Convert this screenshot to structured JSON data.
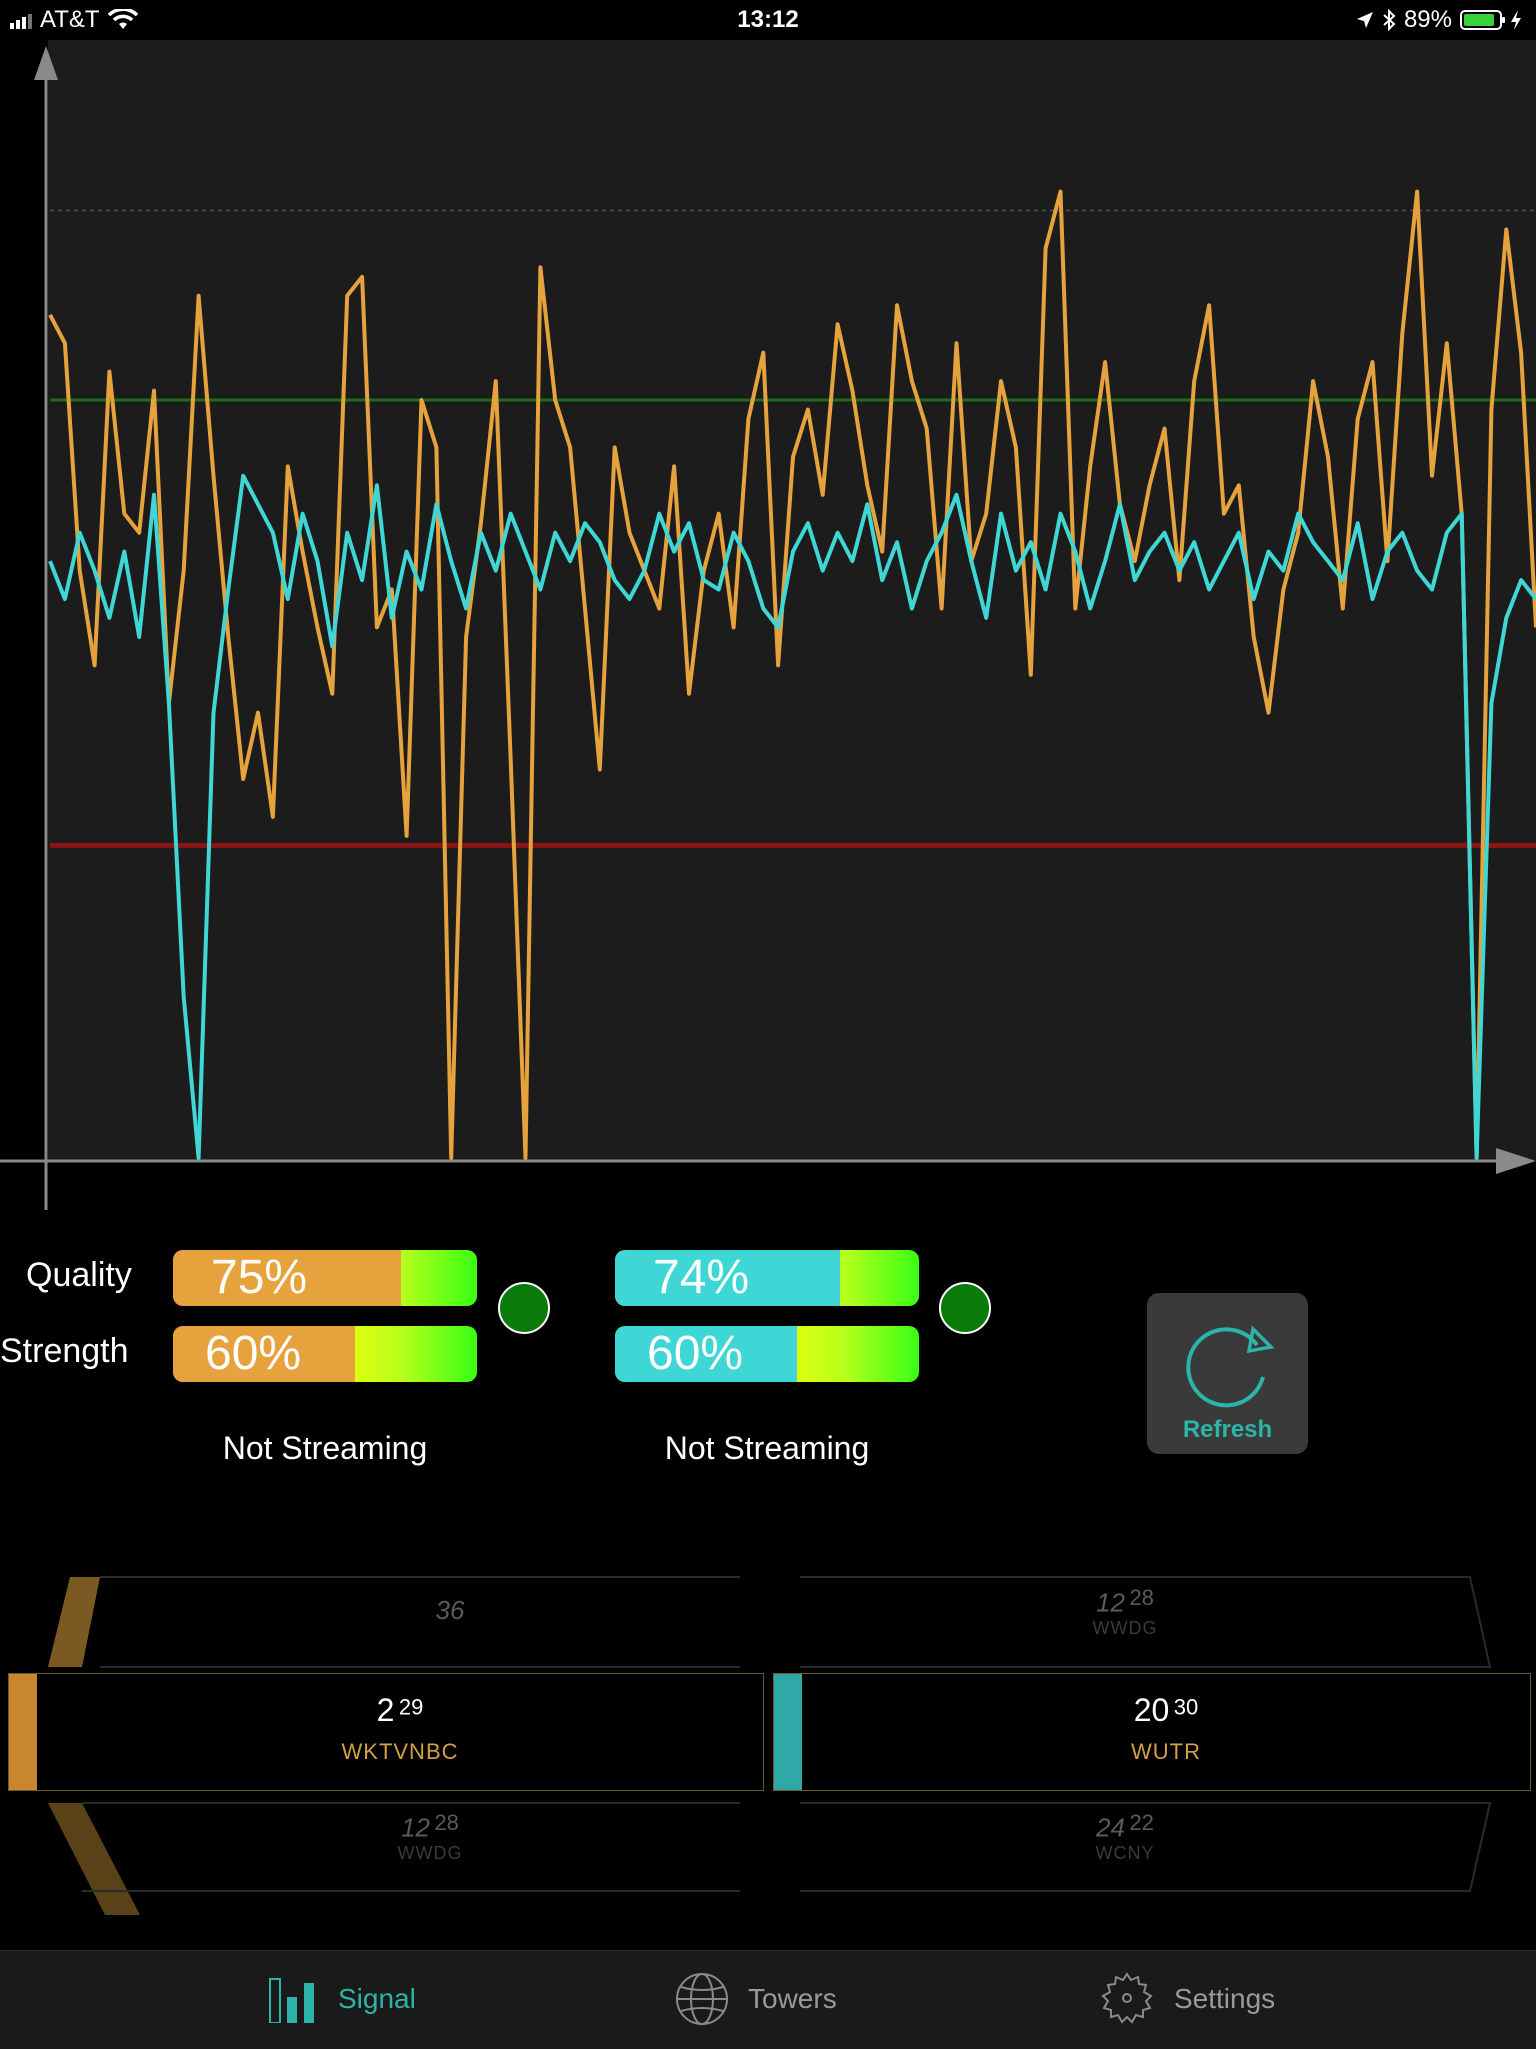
{
  "status_bar": {
    "carrier": "AT&T",
    "time": "13:12",
    "battery_percent": "89%",
    "battery_level": 0.89
  },
  "chart": {
    "orange_color": "#e6a23c",
    "cyan_color": "#3fd6d6",
    "top_reference": 100,
    "green_reference": 80,
    "red_reference": 33
  },
  "chart_data": {
    "type": "line",
    "title": "",
    "xlabel": "",
    "ylabel": "",
    "ylim": [
      0,
      118
    ],
    "grid": false,
    "x": [
      0,
      4,
      8,
      12,
      16,
      20,
      24,
      28,
      32,
      36,
      40,
      44,
      48,
      52,
      56,
      60,
      64,
      68,
      72,
      76,
      80,
      84,
      88,
      92,
      96,
      100,
      104,
      108,
      112,
      116,
      120,
      124,
      128,
      132,
      136,
      140,
      144,
      148,
      152,
      156,
      160,
      164,
      168,
      172,
      176,
      180,
      184,
      188,
      192,
      196,
      200,
      204,
      208,
      212,
      216,
      220,
      224,
      228,
      232,
      236,
      240,
      244,
      248,
      252,
      256,
      260,
      264,
      268,
      272,
      276,
      280,
      284,
      288,
      292,
      296,
      300,
      304,
      308,
      312,
      316,
      320,
      324,
      328,
      332,
      336,
      340,
      344,
      348,
      352,
      356,
      360,
      364,
      368,
      372,
      376,
      380,
      384,
      388,
      392,
      396,
      400
    ],
    "series": [
      {
        "name": "WKTVNBC",
        "values": [
          89,
          86,
          62,
          52,
          83,
          68,
          66,
          81,
          48,
          62,
          91,
          72,
          55,
          40,
          47,
          36,
          73,
          64,
          56,
          49,
          91,
          93,
          56,
          60,
          34,
          80,
          75,
          0,
          55,
          67,
          82,
          42,
          0,
          94,
          80,
          75,
          58,
          41,
          75,
          66,
          62,
          58,
          73,
          49,
          62,
          68,
          56,
          78,
          85,
          52,
          74,
          79,
          70,
          88,
          81,
          71,
          64,
          90,
          82,
          77,
          58,
          86,
          63,
          68,
          82,
          75,
          51,
          96,
          102,
          58,
          73,
          84,
          69,
          63,
          71,
          77,
          61,
          82,
          90,
          68,
          71,
          55,
          47,
          60,
          66,
          82,
          74,
          58,
          78,
          84,
          63,
          87,
          102,
          72,
          86,
          68,
          0,
          79,
          98,
          85,
          56
        ]
      },
      {
        "name": "WUTR",
        "values": [
          63,
          59,
          66,
          62,
          57,
          64,
          55,
          70,
          48,
          17,
          0,
          47,
          60,
          72,
          69,
          66,
          59,
          68,
          63,
          54,
          66,
          61,
          71,
          57,
          64,
          60,
          69,
          63,
          58,
          66,
          62,
          68,
          64,
          60,
          66,
          63,
          67,
          65,
          61,
          59,
          62,
          68,
          64,
          67,
          61,
          60,
          66,
          63,
          58,
          56,
          64,
          67,
          62,
          66,
          63,
          69,
          61,
          65,
          58,
          63,
          66,
          70,
          63,
          57,
          68,
          62,
          65,
          60,
          68,
          64,
          58,
          63,
          69,
          61,
          64,
          66,
          62,
          65,
          60,
          63,
          66,
          59,
          64,
          62,
          68,
          65,
          63,
          61,
          67,
          59,
          64,
          66,
          62,
          60,
          66,
          68,
          0,
          48,
          57,
          61,
          59
        ]
      }
    ]
  },
  "left_channel": {
    "color": "#e6a23c",
    "quality_label": "Quality",
    "strength_label": "Strength",
    "quality_text": "75%",
    "quality_value": 0.75,
    "strength_text": "60%",
    "strength_value": 0.6,
    "stream_status": "Not Streaming",
    "picker": {
      "above": {
        "number": "36",
        "sup": "",
        "name": ""
      },
      "selected": {
        "number": "2",
        "sup": "29",
        "name": "WKTVNBC"
      },
      "below": {
        "number": "12",
        "sup": "28",
        "name": "WWDG"
      }
    }
  },
  "right_channel": {
    "color": "#3fd6d6",
    "quality_text": "74%",
    "quality_value": 0.74,
    "strength_text": "60%",
    "strength_value": 0.6,
    "stream_status": "Not Streaming",
    "picker": {
      "above": {
        "number": "12",
        "sup": "28",
        "name": "WWDG"
      },
      "selected": {
        "number": "20",
        "sup": "30",
        "name": "WUTR"
      },
      "below": {
        "number": "24",
        "sup": "22",
        "name": "WCNY"
      }
    }
  },
  "refresh": {
    "label": "Refresh",
    "icon": "refresh-icon"
  },
  "tabs": [
    {
      "label": "Signal",
      "icon": "signal-bars-icon",
      "active": true
    },
    {
      "label": "Towers",
      "icon": "globe-icon",
      "active": false
    },
    {
      "label": "Settings",
      "icon": "gear-icon",
      "active": false
    }
  ]
}
